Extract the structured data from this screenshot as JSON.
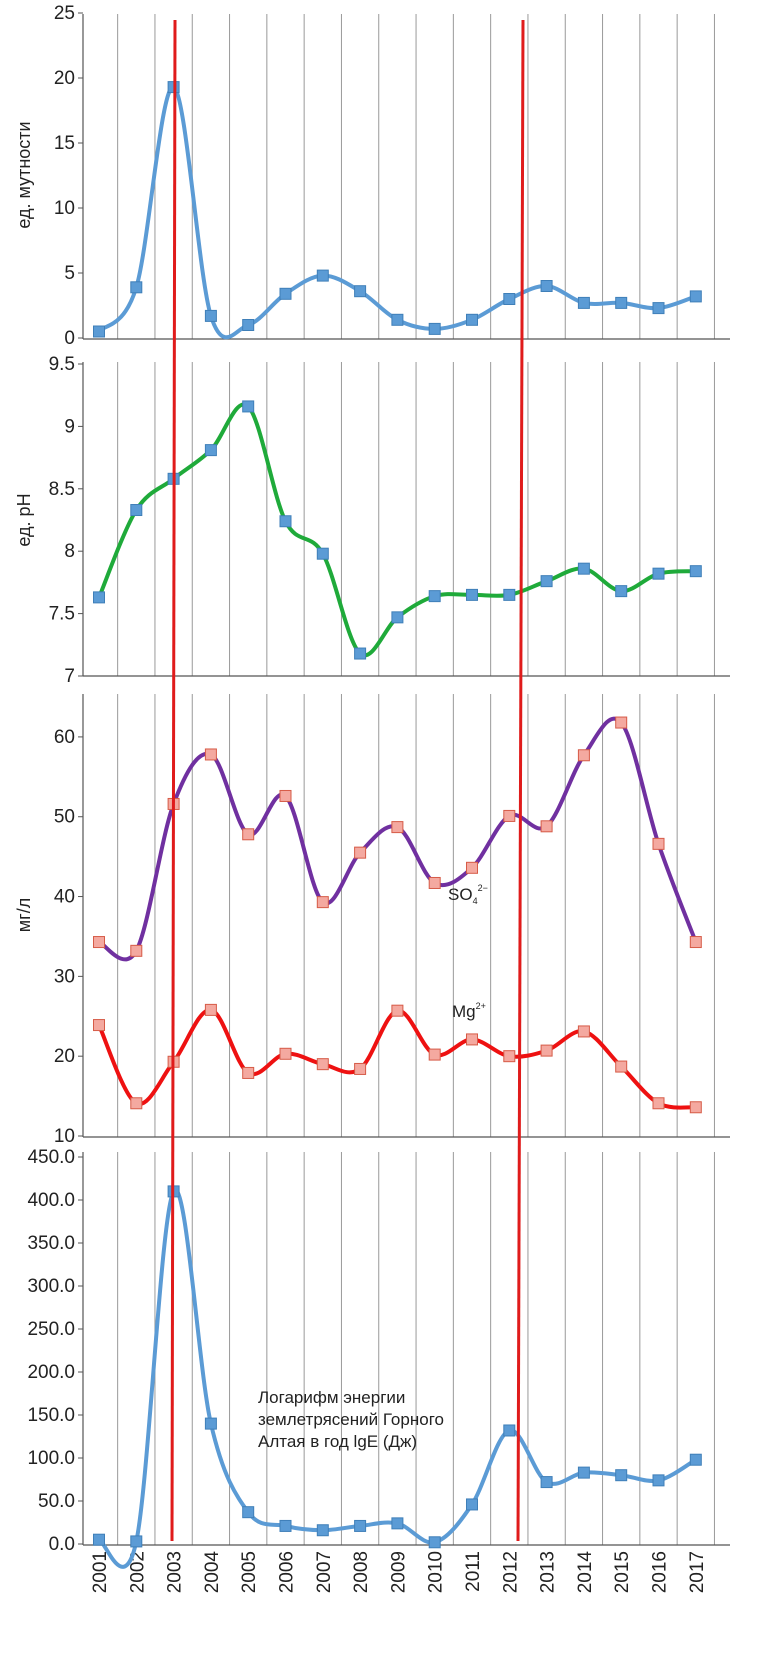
{
  "colors": {
    "blue": "#5b9bd5",
    "green": "#1faa3a",
    "purple": "#7030a0",
    "red": "#ee1111",
    "marker_blue": "#5b9bd5",
    "marker_salmon": "#f4a9a0",
    "event_line": "#e01b1b",
    "grid": "#999999"
  },
  "chart_data": [
    {
      "type": "line",
      "ylabel": "ед. мутности",
      "ylim": [
        0,
        25
      ],
      "yticks": [
        "0",
        "5",
        "10",
        "15",
        "20",
        "25"
      ],
      "x": [
        2001,
        2002,
        2003,
        2004,
        2005,
        2006,
        2007,
        2008,
        2009,
        2010,
        2011,
        2012,
        2013,
        2014,
        2015,
        2016,
        2017
      ],
      "series": [
        {
          "values": [
            0.5,
            3.9,
            19.3,
            1.7,
            1.0,
            3.4,
            4.8,
            3.6,
            1.4,
            0.7,
            1.4,
            3.0,
            4.0,
            2.7,
            2.7,
            2.3,
            3.2
          ]
        }
      ],
      "grid": "vertical"
    },
    {
      "type": "line",
      "ylabel": "ед. pH",
      "ylim": [
        7,
        9.5
      ],
      "yticks": [
        "7",
        "7.5",
        "8",
        "8.5",
        "9",
        "9.5"
      ],
      "x": [
        2001,
        2002,
        2003,
        2004,
        2005,
        2006,
        2007,
        2008,
        2009,
        2010,
        2011,
        2012,
        2013,
        2014,
        2015,
        2016,
        2017
      ],
      "series": [
        {
          "values": [
            7.63,
            8.33,
            8.58,
            8.81,
            9.16,
            8.24,
            7.98,
            7.18,
            7.47,
            7.64,
            7.65,
            7.65,
            7.76,
            7.86,
            7.68,
            7.82,
            7.84
          ]
        }
      ],
      "grid": "vertical"
    },
    {
      "type": "line",
      "ylabel": "мг/л",
      "ylim": [
        10,
        65
      ],
      "yticks": [
        "10",
        "20",
        "30",
        "40",
        "50",
        "60"
      ],
      "x": [
        2001,
        2002,
        2003,
        2004,
        2005,
        2006,
        2007,
        2008,
        2009,
        2010,
        2011,
        2012,
        2013,
        2014,
        2015,
        2016,
        2017
      ],
      "series": [
        {
          "name_base": "SO",
          "name_sub": "4",
          "name_sup": "2−",
          "values": [
            34.3,
            33.2,
            51.6,
            57.8,
            47.8,
            52.6,
            39.3,
            45.5,
            48.7,
            41.7,
            43.6,
            50.1,
            48.8,
            57.7,
            61.8,
            46.6,
            34.3
          ]
        },
        {
          "name_base": "Mg",
          "name_sup": "2+",
          "values": [
            23.9,
            14.1,
            19.3,
            25.8,
            17.9,
            20.3,
            19.0,
            18.4,
            25.7,
            20.2,
            22.1,
            20.0,
            20.7,
            23.1,
            18.7,
            14.1,
            13.6
          ]
        }
      ],
      "grid": "vertical"
    },
    {
      "type": "line",
      "ylim": [
        0,
        450
      ],
      "yticks": [
        "0.0",
        "50.0",
        "100.0",
        "150.0",
        "200.0",
        "250.0",
        "300.0",
        "350.0",
        "400.0",
        "450.0"
      ],
      "x": [
        2001,
        2002,
        2003,
        2004,
        2005,
        2006,
        2007,
        2008,
        2009,
        2010,
        2011,
        2012,
        2013,
        2014,
        2015,
        2016,
        2017
      ],
      "xticks": [
        "2001",
        "2002",
        "2003",
        "2004",
        "2005",
        "2006",
        "2007",
        "2008",
        "2009",
        "2010",
        "2011",
        "2012",
        "2013",
        "2014",
        "2015",
        "2016",
        "2017"
      ],
      "annotation": [
        "Логарифм энергии",
        "землетрясений Горного",
        "Алтая в год lgE (Дж)"
      ],
      "series": [
        {
          "values": [
            5,
            3,
            410,
            140,
            37,
            21,
            16,
            21,
            24,
            2,
            46,
            132,
            72,
            83,
            80,
            74,
            98
          ]
        }
      ],
      "grid": "vertical"
    }
  ],
  "event_years": [
    2003,
    2012
  ]
}
